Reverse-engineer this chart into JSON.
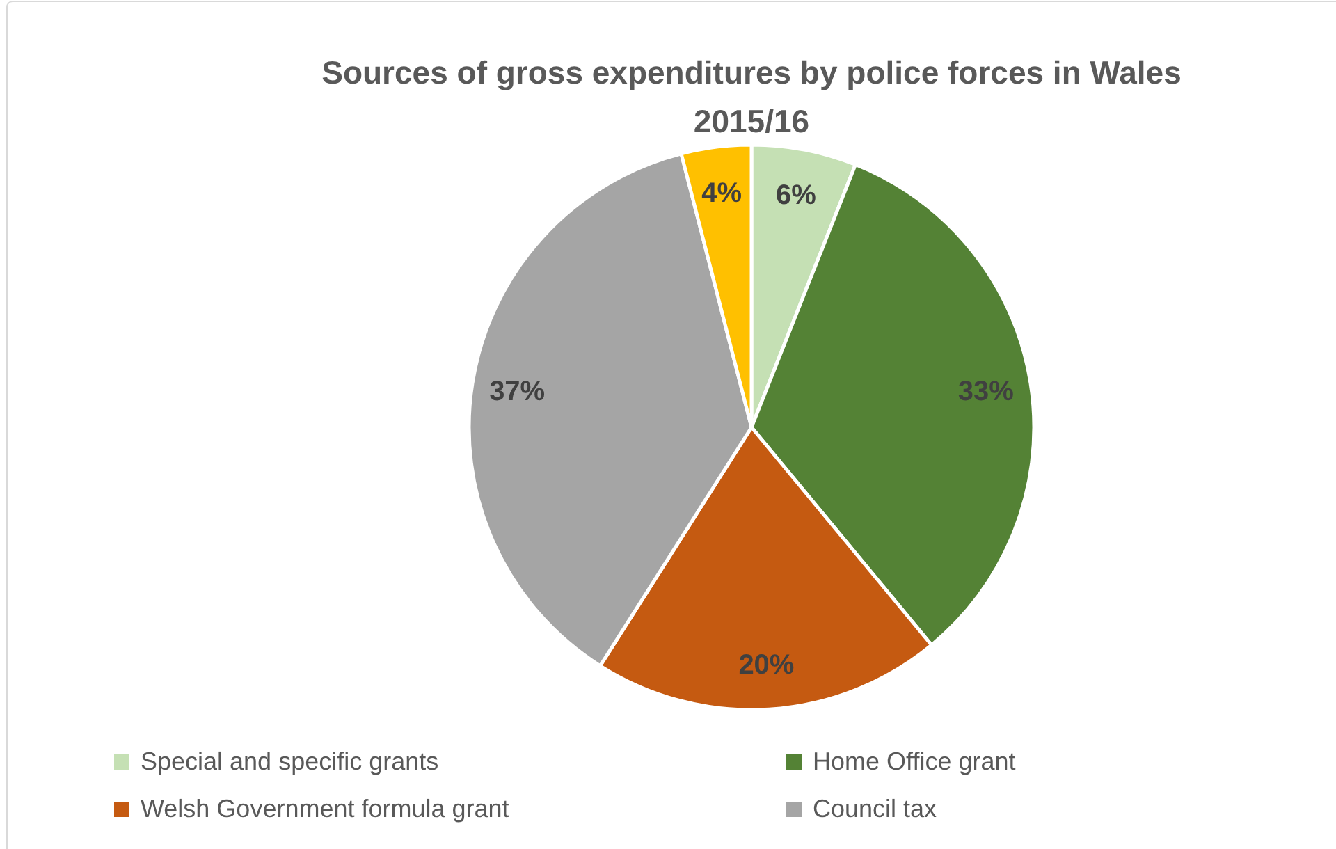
{
  "chart_data": {
    "type": "pie",
    "title": "Sources of gross expenditures by police forces in Wales 2015/16",
    "categories": [
      "Special and specific grants",
      "Home Office grant",
      "Welsh Government formula grant",
      "Council tax",
      null
    ],
    "values": [
      6,
      33,
      20,
      37,
      4
    ],
    "colors": [
      "#c5e0b4",
      "#548235",
      "#c55a11",
      "#a5a5a5",
      "#ffc000"
    ],
    "value_labels": [
      "6%",
      "33%",
      "20%",
      "37%",
      "4%"
    ],
    "legend": "bottom"
  }
}
